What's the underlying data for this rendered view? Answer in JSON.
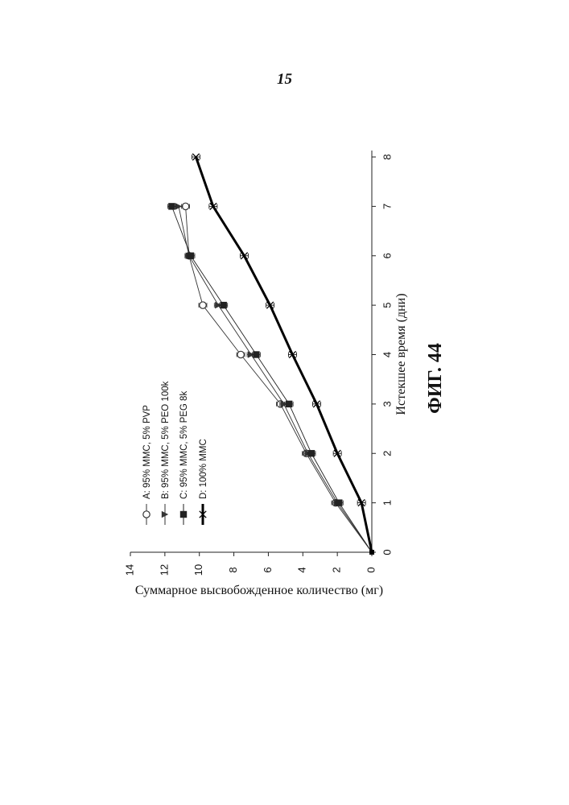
{
  "page": {
    "page_number": "15",
    "figure_caption": "ФИГ. 44"
  },
  "chart_data": {
    "type": "line",
    "orientation": "rotated 90° counter-clockwise on the page",
    "xlabel": "Истекшее время (дни)",
    "ylabel": "Суммарное высвобожденное количество (мг)",
    "xlim": [
      0,
      8
    ],
    "ylim": [
      0,
      14
    ],
    "x_ticks": [
      "0",
      "1",
      "2",
      "3",
      "4",
      "5",
      "6",
      "7",
      "8"
    ],
    "y_ticks": [
      "0",
      "2",
      "4",
      "6",
      "8",
      "10",
      "12",
      "14"
    ],
    "grid": false,
    "legend_placement": "top-left",
    "series": [
      {
        "name": "A: 95% MMC, 5% PVP",
        "marker": "open-circle",
        "line": "thin",
        "color": "#333333",
        "x": [
          0,
          1,
          2,
          3,
          4,
          5,
          6,
          7
        ],
        "y": [
          0,
          2.1,
          3.8,
          5.3,
          7.6,
          9.8,
          10.6,
          10.8
        ]
      },
      {
        "name": "B: 95% MMC, 5% PEO 100k",
        "marker": "triangle",
        "line": "thin",
        "color": "#333333",
        "x": [
          0,
          1,
          2,
          3,
          4,
          5,
          6,
          7
        ],
        "y": [
          0,
          2.0,
          3.7,
          5.1,
          7.0,
          8.9,
          10.6,
          11.2
        ]
      },
      {
        "name": "C: 95% MMC, 5% PEG 8k",
        "marker": "square",
        "line": "thin",
        "color": "#222222",
        "x": [
          0,
          1,
          2,
          3,
          4,
          5,
          6,
          7
        ],
        "y": [
          0,
          1.9,
          3.5,
          4.8,
          6.7,
          8.6,
          10.5,
          11.6
        ]
      },
      {
        "name": "D: 100% MMC",
        "marker": "cross",
        "line": "thick",
        "color": "#000000",
        "x": [
          0,
          1,
          2,
          3,
          4,
          5,
          6,
          7,
          8
        ],
        "y": [
          0,
          0.6,
          2.0,
          3.2,
          4.6,
          5.9,
          7.4,
          9.2,
          10.2
        ]
      }
    ]
  }
}
